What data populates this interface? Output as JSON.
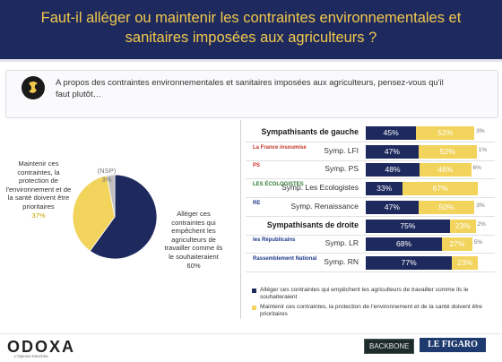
{
  "header": {
    "title": "Faut-il alléger ou maintenir les contraintes environnementales et sanitaires imposées aux agriculteurs ?"
  },
  "question": {
    "text": "A propos des contraintes environnementales et sanitaires imposées aux agriculteurs, pensez-vous qu'il faut plutôt…"
  },
  "colors": {
    "navy": "#1e2a5e",
    "yellow": "#f2d45c",
    "nsp": "#bfbfbf",
    "header_text": "#f2c94c"
  },
  "chart_data": [
    {
      "type": "pie",
      "slices": [
        {
          "label": "Alléger ces contraintes qui empêchent les agriculteurs de travailler comme ils le souhaiteraient",
          "value": 60,
          "display": "60%",
          "color": "#1e2a5e"
        },
        {
          "label": "Maintenir ces contraintes, la protection de l'environnement et de la santé doivent être prioritaires",
          "value": 37,
          "display": "37%",
          "color": "#f2d45c"
        },
        {
          "label": "(NSP)",
          "value": 3,
          "display": "3%",
          "color": "#bfbfbf"
        }
      ]
    },
    {
      "type": "bar",
      "stacked": true,
      "orientation": "horizontal",
      "categories": [
        "Sympathisants de gauche",
        "Symp. LFI",
        "Symp. PS",
        "Symp. Les Ecologistes",
        "Symp. Renaissance",
        "Sympathisants de droite",
        "Symp. LR",
        "Symp. RN"
      ],
      "series": [
        {
          "name": "Alléger ces contraintes qui empêchent les agriculteurs de travailler comme ils le souhaiteraient",
          "color": "#1e2a5e",
          "values": [
            45,
            47,
            48,
            33,
            47,
            75,
            68,
            77
          ],
          "labels": [
            "45%",
            "47%",
            "48%",
            "33%",
            "47%",
            "75%",
            "68%",
            "77%"
          ]
        },
        {
          "name": "Maintenir ces contraintes, la protection de l'environnement et de la santé doivent être prioritaires",
          "color": "#f2d45c",
          "values": [
            52,
            52,
            46,
            67,
            50,
            23,
            27,
            23
          ],
          "labels": [
            "52%",
            "52%",
            "46%",
            "67%",
            "50%",
            "23%",
            "27%",
            "23%"
          ]
        },
        {
          "name": "(NSP)",
          "color": "#bfbfbf",
          "values": [
            3,
            1,
            6,
            0,
            3,
            2,
            5,
            0
          ],
          "labels": [
            "3%",
            "1%",
            "6%",
            "",
            "3%",
            "2%",
            "5%",
            ""
          ]
        }
      ],
      "xlim": [
        0,
        100
      ]
    }
  ],
  "logos": {
    "lfi": "La France insoumise",
    "ps": "PS",
    "eco": "LES ÉCOLOGISTES",
    "ren": "RE",
    "lr": "les Républicains",
    "rn": "Rassemblement National"
  },
  "footer": {
    "brand": "ODOXA",
    "tagline": "L'Opinion tranchée",
    "partner1": "BACKBONE",
    "partner2": "LE FIGARO"
  }
}
